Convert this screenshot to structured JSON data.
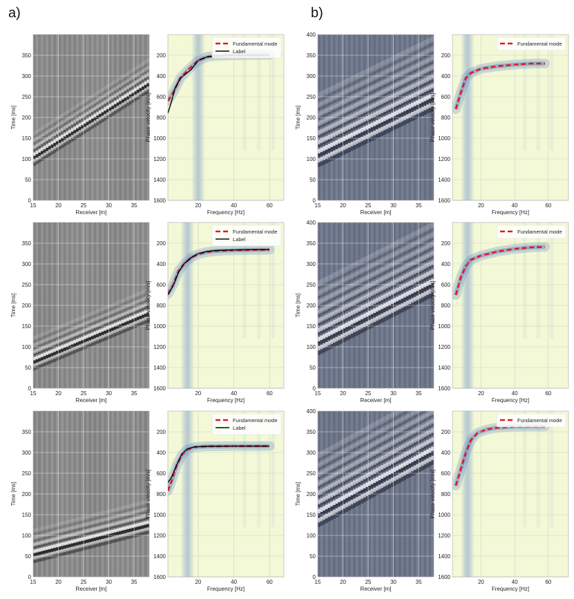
{
  "panel_labels": [
    "a)",
    "b)"
  ],
  "colors": {
    "seis_gray_dark": "#1a1a1a",
    "seis_gray_mid": "#8c8c8c",
    "seis_gray_light": "#f2f2f2",
    "seis_bone_dark": "#2b2f42",
    "seis_bone_mid": "#6b7488",
    "seis_bone_light": "#eef1f4",
    "disp_bg": "#f3f8d6",
    "disp_high": "#5b86c2",
    "fundamental": "#e8141b",
    "label_line": "#000000",
    "grid": "#c8c8c8"
  },
  "chart_data": [
    {
      "id": "a1-seis",
      "type": "heatmap",
      "colormap": "gray",
      "xlabel": "Receiver [m]",
      "ylabel": "Time [ms]",
      "xlim": [
        15,
        38
      ],
      "ylim": [
        400,
        0
      ],
      "xticks": [
        15,
        20,
        25,
        30,
        35
      ],
      "yticks": [
        0,
        50,
        100,
        150,
        200,
        250,
        300,
        350
      ],
      "events": [
        {
          "t0": 105,
          "t1": 280,
          "strength": 1.0
        }
      ]
    },
    {
      "id": "a1-disp",
      "type": "line",
      "xlabel": "Frequency [Hz]",
      "ylabel": "Phase velocity [m/s]",
      "xlim": [
        3,
        68
      ],
      "ylim": [
        0,
        1600
      ],
      "xticks": [
        20,
        40,
        60
      ],
      "yticks": [
        200,
        400,
        600,
        800,
        1000,
        1200,
        1400,
        1600
      ],
      "legend": "top-right",
      "series": [
        {
          "name": "Fundamental mode",
          "style": "dashed-red",
          "x": [
            3,
            6,
            10,
            15,
            20,
            25,
            30,
            40,
            50,
            60
          ],
          "y": [
            640,
            560,
            420,
            330,
            250,
            215,
            205,
            200,
            197,
            197
          ]
        },
        {
          "name": "Label",
          "style": "solid-black",
          "x": [
            3,
            5,
            7,
            10,
            13,
            16,
            20,
            25,
            30,
            40,
            50,
            60
          ],
          "y": [
            760,
            650,
            520,
            420,
            380,
            340,
            250,
            215,
            205,
            200,
            200,
            200
          ]
        }
      ],
      "energy": {
        "base": 195,
        "rise_at": 18
      }
    },
    {
      "id": "b1-seis",
      "type": "heatmap",
      "colormap": "bone",
      "xlabel": "Receiver [m]",
      "ylabel": "Time [ms]",
      "xlim": [
        15,
        38
      ],
      "ylim": [
        400,
        0
      ],
      "xticks": [
        15,
        20,
        25,
        30,
        35
      ],
      "yticks": [
        0,
        50,
        100,
        150,
        200,
        250,
        300,
        350,
        400
      ],
      "events": [
        {
          "t0": 110,
          "t1": 245,
          "strength": 1.0
        }
      ]
    },
    {
      "id": "b1-disp",
      "type": "line",
      "xlabel": "Frequency [Hz]",
      "ylabel": "Phase velocity [m/s]",
      "xlim": [
        3,
        72
      ],
      "ylim": [
        0,
        1600
      ],
      "xticks": [
        20,
        40,
        60
      ],
      "yticks": [
        200,
        400,
        600,
        800,
        1000,
        1200,
        1400,
        1600
      ],
      "legend": "top-right",
      "series": [
        {
          "name": "Fundamental mode",
          "style": "dashed-red",
          "x": [
            5,
            8,
            11,
            14,
            20,
            30,
            40,
            50,
            58
          ],
          "y": [
            720,
            560,
            420,
            370,
            330,
            305,
            290,
            280,
            280
          ]
        }
      ],
      "energy": {
        "base": 230,
        "rise_at": 10
      }
    },
    {
      "id": "a2-seis",
      "type": "heatmap",
      "colormap": "gray",
      "xlabel": "Receiver [m]",
      "ylabel": "Time [ms]",
      "xlim": [
        15,
        38
      ],
      "ylim": [
        400,
        0
      ],
      "xticks": [
        15,
        20,
        25,
        30,
        35
      ],
      "yticks": [
        0,
        50,
        100,
        150,
        200,
        250,
        300,
        350
      ],
      "events": [
        {
          "t0": 65,
          "t1": 180,
          "strength": 1.0
        }
      ]
    },
    {
      "id": "a2-disp",
      "type": "line",
      "xlabel": "Frequency [Hz]",
      "ylabel": "Phase velocity [m/s]",
      "xlim": [
        3,
        68
      ],
      "ylim": [
        0,
        1600
      ],
      "xticks": [
        20,
        40,
        60
      ],
      "yticks": [
        200,
        400,
        600,
        800,
        1000,
        1200,
        1400,
        1600
      ],
      "legend": "top-right",
      "series": [
        {
          "name": "Fundamental mode",
          "style": "dashed-red",
          "x": [
            3,
            6,
            9,
            12,
            16,
            20,
            25,
            30,
            40,
            50,
            60
          ],
          "y": [
            690,
            600,
            470,
            400,
            340,
            305,
            285,
            275,
            268,
            265,
            262
          ]
        },
        {
          "name": "Label",
          "style": "solid-black",
          "x": [
            3,
            6,
            9,
            12,
            16,
            20,
            25,
            30,
            40,
            50,
            60
          ],
          "y": [
            700,
            610,
            480,
            400,
            340,
            300,
            280,
            270,
            265,
            262,
            262
          ]
        }
      ],
      "energy": {
        "base": 255,
        "rise_at": 12
      }
    },
    {
      "id": "b2-seis",
      "type": "heatmap",
      "colormap": "bone",
      "xlabel": "Receiver [m]",
      "ylabel": "Time [ms]",
      "xlim": [
        15,
        38
      ],
      "ylim": [
        400,
        0
      ],
      "xticks": [
        15,
        20,
        25,
        30,
        35
      ],
      "yticks": [
        0,
        50,
        100,
        150,
        200,
        250,
        300,
        350,
        400
      ],
      "events": [
        {
          "t0": 110,
          "t1": 250,
          "strength": 1.0
        }
      ]
    },
    {
      "id": "b2-disp",
      "type": "line",
      "xlabel": "Frequency [Hz]",
      "ylabel": "Phase velocity [m/s]",
      "xlim": [
        3,
        72
      ],
      "ylim": [
        0,
        1600
      ],
      "xticks": [
        20,
        40,
        60
      ],
      "yticks": [
        200,
        400,
        600,
        800,
        1000,
        1200,
        1400,
        1600
      ],
      "legend": "top-right",
      "series": [
        {
          "name": "Fundamental mode",
          "style": "dashed-red",
          "x": [
            5,
            8,
            11,
            14,
            20,
            30,
            40,
            50,
            58
          ],
          "y": [
            700,
            530,
            420,
            360,
            320,
            280,
            255,
            240,
            235
          ]
        }
      ],
      "energy": {
        "base": 220,
        "rise_at": 10
      }
    },
    {
      "id": "a3-seis",
      "type": "heatmap",
      "colormap": "gray",
      "xlabel": "Receiver [m]",
      "ylabel": "Time [ms]",
      "xlim": [
        15,
        38
      ],
      "ylim": [
        400,
        0
      ],
      "xticks": [
        15,
        20,
        25,
        30,
        35
      ],
      "yticks": [
        0,
        50,
        100,
        150,
        200,
        250,
        300,
        350
      ],
      "events": [
        {
          "t0": 55,
          "t1": 125,
          "strength": 1.0
        }
      ]
    },
    {
      "id": "a3-disp",
      "type": "line",
      "xlabel": "Frequency [Hz]",
      "ylabel": "Phase velocity [m/s]",
      "xlim": [
        3,
        68
      ],
      "ylim": [
        0,
        1600
      ],
      "xticks": [
        20,
        40,
        60
      ],
      "yticks": [
        200,
        400,
        600,
        800,
        1000,
        1200,
        1400,
        1600
      ],
      "legend": "top-right",
      "series": [
        {
          "name": "Fundamental mode",
          "style": "dashed-red",
          "x": [
            3,
            5,
            8,
            11,
            14,
            18,
            25,
            40,
            60
          ],
          "y": [
            770,
            680,
            520,
            420,
            370,
            348,
            340,
            338,
            338
          ]
        },
        {
          "name": "Label",
          "style": "solid-black",
          "x": [
            3,
            5,
            8,
            11,
            14,
            18,
            25,
            40,
            60
          ],
          "y": [
            690,
            640,
            520,
            410,
            365,
            345,
            340,
            338,
            338
          ]
        }
      ],
      "energy": {
        "base": 330,
        "rise_at": 12
      }
    },
    {
      "id": "b3-seis",
      "type": "heatmap",
      "colormap": "bone",
      "xlabel": "Receiver [m]",
      "ylabel": "Time [ms]",
      "xlim": [
        15,
        38
      ],
      "ylim": [
        400,
        0
      ],
      "xticks": [
        15,
        20,
        25,
        30,
        35
      ],
      "yticks": [
        0,
        50,
        100,
        150,
        200,
        250,
        300,
        350,
        400
      ],
      "events": [
        {
          "t0": 150,
          "t1": 300,
          "strength": 1.0
        }
      ]
    },
    {
      "id": "b3-disp",
      "type": "line",
      "xlabel": "Frequency [Hz]",
      "ylabel": "Phase velocity [m/s]",
      "xlim": [
        3,
        72
      ],
      "ylim": [
        0,
        1600
      ],
      "xticks": [
        20,
        40,
        60
      ],
      "yticks": [
        200,
        400,
        600,
        800,
        1000,
        1200,
        1400,
        1600
      ],
      "legend": "top-right",
      "series": [
        {
          "name": "Fundamental mode",
          "style": "dashed-red",
          "x": [
            5,
            8,
            11,
            14,
            18,
            24,
            30,
            40,
            50,
            58
          ],
          "y": [
            720,
            560,
            400,
            280,
            210,
            175,
            160,
            150,
            148,
            148
          ]
        }
      ],
      "energy": {
        "base": 150,
        "rise_at": 10
      }
    }
  ]
}
